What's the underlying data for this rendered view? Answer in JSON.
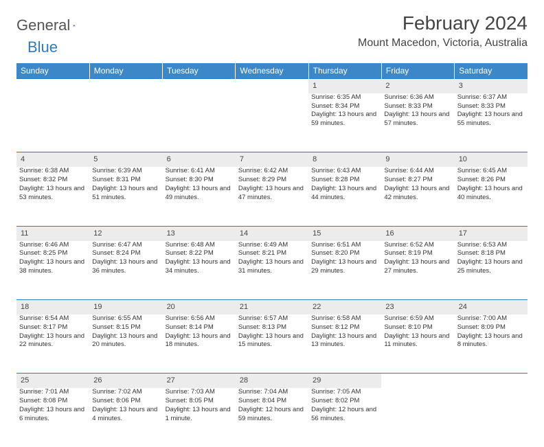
{
  "logo": {
    "part1": "General",
    "part2": "Blue"
  },
  "header": {
    "month_title": "February 2024",
    "location": "Mount Macedon, Victoria, Australia"
  },
  "colors": {
    "header_bg": "#3b87c8",
    "header_text": "#ffffff",
    "daynum_bg": "#ececec",
    "rule": "#2f7abf",
    "logo_blue": "#2f7abf"
  },
  "weekdays": [
    "Sunday",
    "Monday",
    "Tuesday",
    "Wednesday",
    "Thursday",
    "Friday",
    "Saturday"
  ],
  "weeks": [
    [
      null,
      null,
      null,
      null,
      {
        "n": "1",
        "sr": "Sunrise: 6:35 AM",
        "ss": "Sunset: 8:34 PM",
        "dl": "Daylight: 13 hours and 59 minutes."
      },
      {
        "n": "2",
        "sr": "Sunrise: 6:36 AM",
        "ss": "Sunset: 8:33 PM",
        "dl": "Daylight: 13 hours and 57 minutes."
      },
      {
        "n": "3",
        "sr": "Sunrise: 6:37 AM",
        "ss": "Sunset: 8:33 PM",
        "dl": "Daylight: 13 hours and 55 minutes."
      }
    ],
    [
      {
        "n": "4",
        "sr": "Sunrise: 6:38 AM",
        "ss": "Sunset: 8:32 PM",
        "dl": "Daylight: 13 hours and 53 minutes."
      },
      {
        "n": "5",
        "sr": "Sunrise: 6:39 AM",
        "ss": "Sunset: 8:31 PM",
        "dl": "Daylight: 13 hours and 51 minutes."
      },
      {
        "n": "6",
        "sr": "Sunrise: 6:41 AM",
        "ss": "Sunset: 8:30 PM",
        "dl": "Daylight: 13 hours and 49 minutes."
      },
      {
        "n": "7",
        "sr": "Sunrise: 6:42 AM",
        "ss": "Sunset: 8:29 PM",
        "dl": "Daylight: 13 hours and 47 minutes."
      },
      {
        "n": "8",
        "sr": "Sunrise: 6:43 AM",
        "ss": "Sunset: 8:28 PM",
        "dl": "Daylight: 13 hours and 44 minutes."
      },
      {
        "n": "9",
        "sr": "Sunrise: 6:44 AM",
        "ss": "Sunset: 8:27 PM",
        "dl": "Daylight: 13 hours and 42 minutes."
      },
      {
        "n": "10",
        "sr": "Sunrise: 6:45 AM",
        "ss": "Sunset: 8:26 PM",
        "dl": "Daylight: 13 hours and 40 minutes."
      }
    ],
    [
      {
        "n": "11",
        "sr": "Sunrise: 6:46 AM",
        "ss": "Sunset: 8:25 PM",
        "dl": "Daylight: 13 hours and 38 minutes."
      },
      {
        "n": "12",
        "sr": "Sunrise: 6:47 AM",
        "ss": "Sunset: 8:24 PM",
        "dl": "Daylight: 13 hours and 36 minutes."
      },
      {
        "n": "13",
        "sr": "Sunrise: 6:48 AM",
        "ss": "Sunset: 8:22 PM",
        "dl": "Daylight: 13 hours and 34 minutes."
      },
      {
        "n": "14",
        "sr": "Sunrise: 6:49 AM",
        "ss": "Sunset: 8:21 PM",
        "dl": "Daylight: 13 hours and 31 minutes."
      },
      {
        "n": "15",
        "sr": "Sunrise: 6:51 AM",
        "ss": "Sunset: 8:20 PM",
        "dl": "Daylight: 13 hours and 29 minutes."
      },
      {
        "n": "16",
        "sr": "Sunrise: 6:52 AM",
        "ss": "Sunset: 8:19 PM",
        "dl": "Daylight: 13 hours and 27 minutes."
      },
      {
        "n": "17",
        "sr": "Sunrise: 6:53 AM",
        "ss": "Sunset: 8:18 PM",
        "dl": "Daylight: 13 hours and 25 minutes."
      }
    ],
    [
      {
        "n": "18",
        "sr": "Sunrise: 6:54 AM",
        "ss": "Sunset: 8:17 PM",
        "dl": "Daylight: 13 hours and 22 minutes."
      },
      {
        "n": "19",
        "sr": "Sunrise: 6:55 AM",
        "ss": "Sunset: 8:15 PM",
        "dl": "Daylight: 13 hours and 20 minutes."
      },
      {
        "n": "20",
        "sr": "Sunrise: 6:56 AM",
        "ss": "Sunset: 8:14 PM",
        "dl": "Daylight: 13 hours and 18 minutes."
      },
      {
        "n": "21",
        "sr": "Sunrise: 6:57 AM",
        "ss": "Sunset: 8:13 PM",
        "dl": "Daylight: 13 hours and 15 minutes."
      },
      {
        "n": "22",
        "sr": "Sunrise: 6:58 AM",
        "ss": "Sunset: 8:12 PM",
        "dl": "Daylight: 13 hours and 13 minutes."
      },
      {
        "n": "23",
        "sr": "Sunrise: 6:59 AM",
        "ss": "Sunset: 8:10 PM",
        "dl": "Daylight: 13 hours and 11 minutes."
      },
      {
        "n": "24",
        "sr": "Sunrise: 7:00 AM",
        "ss": "Sunset: 8:09 PM",
        "dl": "Daylight: 13 hours and 8 minutes."
      }
    ],
    [
      {
        "n": "25",
        "sr": "Sunrise: 7:01 AM",
        "ss": "Sunset: 8:08 PM",
        "dl": "Daylight: 13 hours and 6 minutes."
      },
      {
        "n": "26",
        "sr": "Sunrise: 7:02 AM",
        "ss": "Sunset: 8:06 PM",
        "dl": "Daylight: 13 hours and 4 minutes."
      },
      {
        "n": "27",
        "sr": "Sunrise: 7:03 AM",
        "ss": "Sunset: 8:05 PM",
        "dl": "Daylight: 13 hours and 1 minute."
      },
      {
        "n": "28",
        "sr": "Sunrise: 7:04 AM",
        "ss": "Sunset: 8:04 PM",
        "dl": "Daylight: 12 hours and 59 minutes."
      },
      {
        "n": "29",
        "sr": "Sunrise: 7:05 AM",
        "ss": "Sunset: 8:02 PM",
        "dl": "Daylight: 12 hours and 56 minutes."
      },
      null,
      null
    ]
  ]
}
